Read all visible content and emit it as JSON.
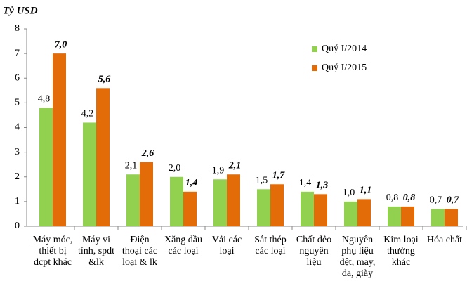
{
  "chart_data": {
    "type": "bar",
    "title": "Tỷ USD",
    "categories": [
      "Máy móc,\nthiết bị\ndcpt khác",
      "Máy vi\ntính, spdt\n&lk",
      "Điện\nthoại các\nloại & lk",
      "Xăng dầu\ncác loại",
      "Vải các\nloại",
      "Sắt thép\ncác loại",
      "Chất dẻo\nnguyên\nliệu",
      "Nguyên\nphụ liệu\ndệt, may,\nda, giày",
      "Kim loại\nthường\nkhác",
      "Hóa chất"
    ],
    "series": [
      {
        "name": "Quý I/2014",
        "color": "#92d050",
        "values": [
          4.8,
          4.2,
          2.1,
          2.0,
          1.9,
          1.5,
          1.4,
          1.0,
          0.8,
          0.7
        ],
        "value_labels": [
          "4,8",
          "4,2",
          "2,1",
          "2,0",
          "1,9",
          "1,5",
          "1,4",
          "1,0",
          "0,8",
          "0,7"
        ]
      },
      {
        "name": "Quý I/2015",
        "color": "#e36c09",
        "values": [
          7.0,
          5.6,
          2.6,
          1.4,
          2.1,
          1.7,
          1.3,
          1.1,
          0.8,
          0.7
        ],
        "value_labels": [
          "7,0",
          "5,6",
          "2,6",
          "1,4",
          "2,1",
          "1,7",
          "1,3",
          "1,1",
          "0,8",
          "0,7"
        ]
      }
    ],
    "ylim": [
      0,
      8
    ],
    "yticks": [
      0,
      1,
      2,
      3,
      4,
      5,
      6,
      7,
      8
    ],
    "grid": false,
    "legend": "top-right"
  }
}
